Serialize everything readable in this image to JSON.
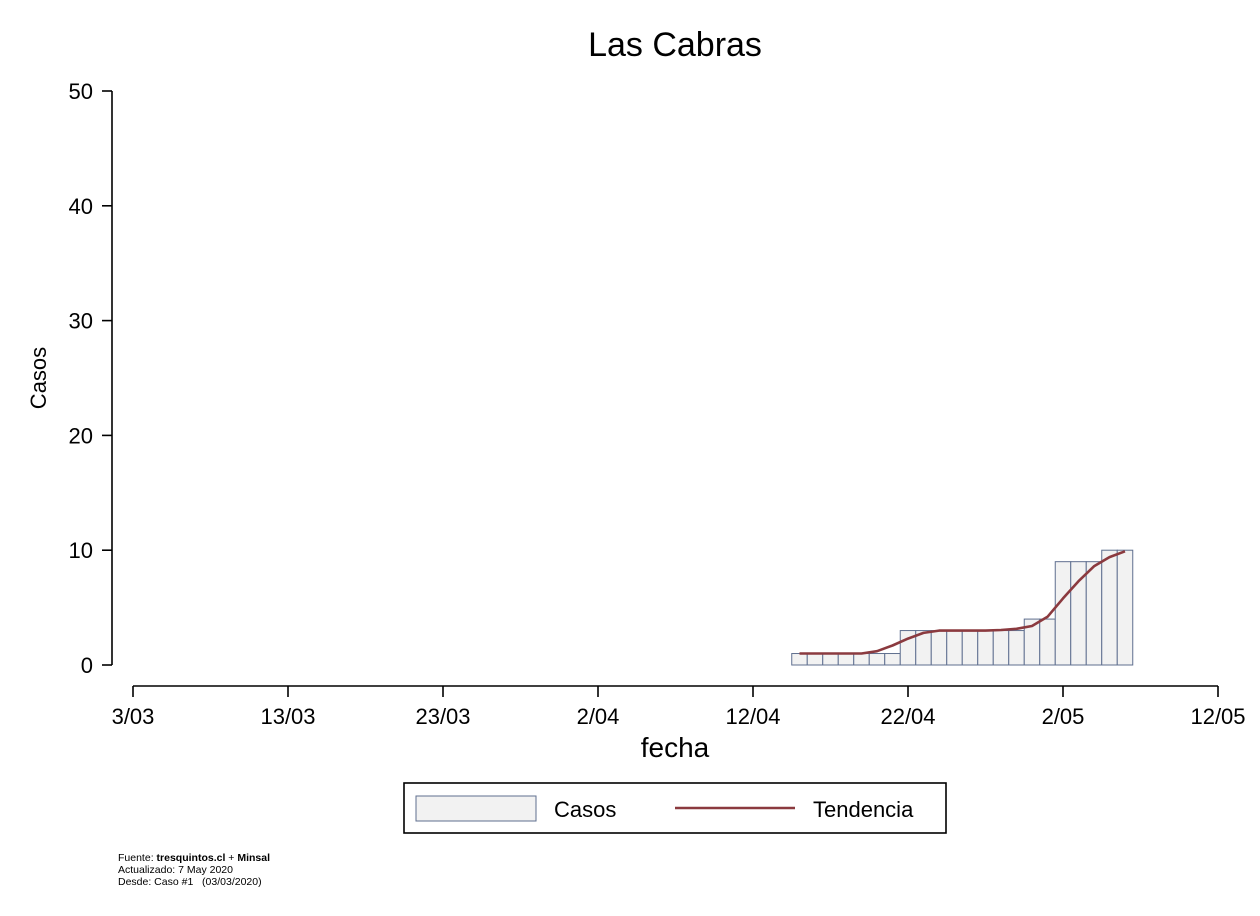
{
  "chart_data": {
    "type": "bar",
    "title": "Las Cabras",
    "xlabel": "fecha",
    "ylabel": "Casos",
    "ylim": [
      0,
      50
    ],
    "yticks": [
      0,
      10,
      20,
      30,
      40,
      50
    ],
    "xlim": [
      "2020-03-03",
      "2020-05-12"
    ],
    "xticks": [
      {
        "date": "2020-03-03",
        "label": "3/03"
      },
      {
        "date": "2020-03-13",
        "label": "13/03"
      },
      {
        "date": "2020-03-23",
        "label": "23/03"
      },
      {
        "date": "2020-04-02",
        "label": "2/04"
      },
      {
        "date": "2020-04-12",
        "label": "12/04"
      },
      {
        "date": "2020-04-22",
        "label": "22/04"
      },
      {
        "date": "2020-05-02",
        "label": "2/05"
      },
      {
        "date": "2020-05-12",
        "label": "12/05"
      }
    ],
    "grid": false,
    "legend_position": "bottom",
    "series": [
      {
        "name": "Casos",
        "kind": "bar",
        "fill": "#f2f2f2",
        "stroke": "#5f6f8f",
        "x": [
          "2020-04-15",
          "2020-04-16",
          "2020-04-17",
          "2020-04-18",
          "2020-04-19",
          "2020-04-20",
          "2020-04-21",
          "2020-04-22",
          "2020-04-23",
          "2020-04-24",
          "2020-04-25",
          "2020-04-26",
          "2020-04-27",
          "2020-04-28",
          "2020-04-29",
          "2020-04-30",
          "2020-05-01",
          "2020-05-02",
          "2020-05-03",
          "2020-05-04",
          "2020-05-05",
          "2020-05-06"
        ],
        "values": [
          1,
          1,
          1,
          1,
          1,
          1,
          1,
          3,
          3,
          3,
          3,
          3,
          3,
          3,
          3,
          4,
          4,
          9,
          9,
          9,
          10,
          10
        ]
      },
      {
        "name": "Tendencia",
        "kind": "line",
        "color": "#8b3a3f",
        "x": [
          "2020-04-15",
          "2020-04-16",
          "2020-04-17",
          "2020-04-18",
          "2020-04-19",
          "2020-04-20",
          "2020-04-21",
          "2020-04-22",
          "2020-04-23",
          "2020-04-24",
          "2020-04-25",
          "2020-04-26",
          "2020-04-27",
          "2020-04-28",
          "2020-04-29",
          "2020-04-30",
          "2020-05-01",
          "2020-05-02",
          "2020-05-03",
          "2020-05-04",
          "2020-05-05",
          "2020-05-06"
        ],
        "values": [
          1,
          1,
          1,
          1,
          1,
          1.2,
          1.7,
          2.3,
          2.8,
          3,
          3,
          3,
          3,
          3.05,
          3.15,
          3.4,
          4.2,
          5.8,
          7.3,
          8.6,
          9.4,
          9.9
        ]
      }
    ]
  },
  "footer": {
    "source_prefix": "Fuente: ",
    "source_site": "tresquintos.cl",
    "source_plus": " + ",
    "source_org": "Minsal",
    "updated": "Actualizado: 7 May 2020",
    "since": "Desde: Caso #1   (03/03/2020)"
  }
}
